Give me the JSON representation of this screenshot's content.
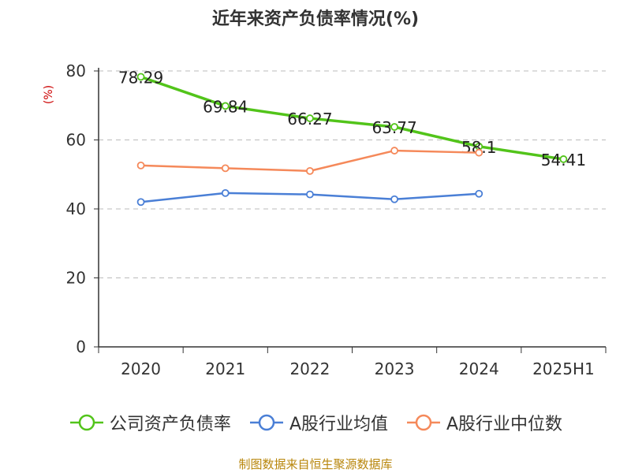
{
  "title": "近年来资产负债率情况(%)",
  "unit_label": "(%)",
  "footer": "制图数据来自恒生聚源数据库",
  "colors": {
    "company": "#52c41a",
    "avg": "#4a7fd6",
    "median": "#f5895a",
    "axis": "#333333",
    "grid": "#bbbbbb",
    "unit": "#cc0000",
    "footer": "#b8860b"
  },
  "chart_data": {
    "type": "line",
    "title": "近年来资产负债率情况(%)",
    "ylabel": "(%)",
    "xlabel": "",
    "ylim": [
      0,
      80
    ],
    "yticks": [
      0,
      20,
      40,
      60,
      80
    ],
    "categories": [
      "2020",
      "2021",
      "2022",
      "2023",
      "2024",
      "2025H1"
    ],
    "grid": true,
    "legend_position": "bottom",
    "series": [
      {
        "name": "公司资产负债率",
        "key": "company",
        "values": [
          78.29,
          69.84,
          66.27,
          63.77,
          58.1,
          54.41
        ],
        "labels": [
          "78.29",
          "69.84",
          "66.27",
          "63.77",
          "58.1",
          "54.41"
        ]
      },
      {
        "name": "A股行业均值",
        "key": "avg",
        "values": [
          42.0,
          44.6,
          44.2,
          42.8,
          44.4,
          null
        ]
      },
      {
        "name": "A股行业中位数",
        "key": "median",
        "values": [
          52.6,
          51.8,
          51.0,
          56.9,
          56.3,
          null
        ]
      }
    ]
  }
}
